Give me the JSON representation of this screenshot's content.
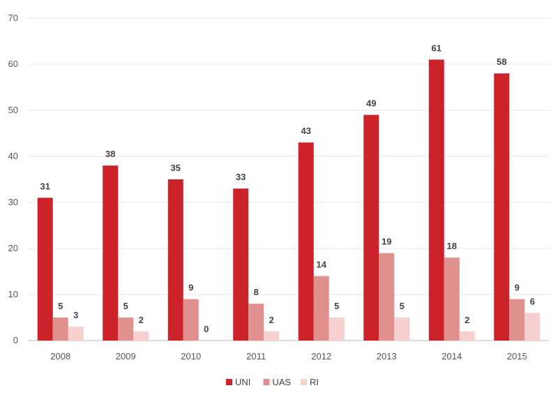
{
  "chart_data": {
    "type": "bar",
    "categories": [
      "2008",
      "2009",
      "2010",
      "2011",
      "2012",
      "2013",
      "2014",
      "2015"
    ],
    "series": [
      {
        "name": "UNI",
        "color": "#cc2229",
        "values": [
          31,
          38,
          35,
          33,
          43,
          49,
          61,
          58
        ]
      },
      {
        "name": "UAS",
        "color": "#e0918e",
        "values": [
          5,
          5,
          9,
          8,
          14,
          19,
          18,
          9
        ]
      },
      {
        "name": "RI",
        "color": "#f6cfcf",
        "values": [
          3,
          2,
          0,
          2,
          5,
          5,
          2,
          6
        ]
      }
    ],
    "ylim": [
      0,
      70
    ],
    "yticks": [
      0,
      10,
      20,
      30,
      40,
      50,
      60,
      70
    ],
    "grid": true,
    "legend": "bottom-center",
    "data_labels": true
  }
}
